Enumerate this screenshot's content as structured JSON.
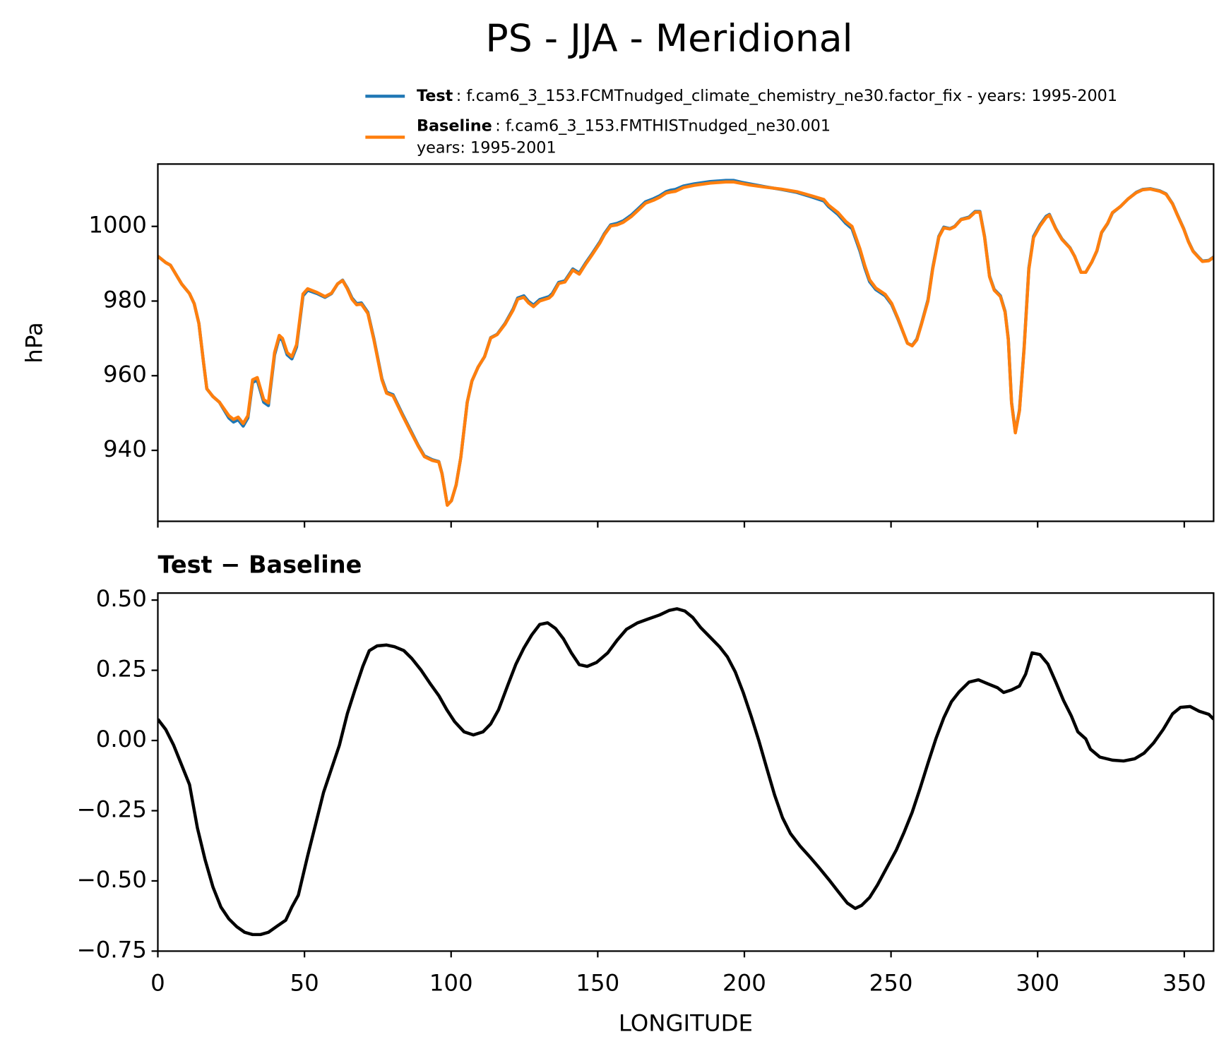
{
  "title": "PS - JJA - Meridional",
  "chart_data": [
    {
      "type": "line",
      "ylabel": "hPa",
      "xlim": [
        0,
        360
      ],
      "ylim": [
        921,
        1016.7
      ],
      "xticks": [
        0,
        50,
        100,
        150,
        200,
        250,
        300,
        350
      ],
      "xticklabels": false,
      "yticks": [
        940,
        960,
        980,
        1000
      ],
      "x": [
        0,
        2.7,
        4.3,
        8.1,
        10.8,
        12.4,
        14,
        15.6,
        16.7,
        18.8,
        21,
        24.2,
        25.8,
        27.4,
        29.1,
        30.7,
        32.3,
        33.9,
        36.1,
        37.7,
        39.8,
        41.4,
        42.5,
        44.1,
        45.7,
        47.3,
        49.5,
        51.1,
        54.3,
        57,
        59.2,
        61.3,
        63,
        64.6,
        66.2,
        67.8,
        69.4,
        71.6,
        73.7,
        76.4,
        78,
        80.2,
        83.4,
        86.1,
        88.8,
        90.9,
        93.6,
        95.8,
        96.9,
        98.7,
        100.1,
        101.7,
        103.3,
        105.5,
        107.1,
        109.2,
        111.4,
        113.5,
        115.7,
        118.4,
        121.1,
        122.7,
        124.8,
        126.4,
        128.1,
        130.2,
        131.8,
        133.4,
        134.5,
        136.7,
        138.8,
        141.5,
        143.7,
        145.8,
        148,
        150.7,
        152.3,
        154.4,
        156.6,
        158.7,
        161.4,
        163.6,
        166.3,
        169,
        171.1,
        173.3,
        174.9,
        176.5,
        179.2,
        182.9,
        188.3,
        193.7,
        196.4,
        199.1,
        201.8,
        207.2,
        212.5,
        217.9,
        223.3,
        227.1,
        228.7,
        231.9,
        234.6,
        236.7,
        239.4,
        241.1,
        242.7,
        244.8,
        248,
        250.2,
        252.4,
        254,
        255.6,
        257.2,
        258.8,
        260.4,
        262.6,
        264.2,
        266.3,
        268,
        270.1,
        271.7,
        273.9,
        276.6,
        278.7,
        280.3,
        281.9,
        283.6,
        285.2,
        287.3,
        288.9,
        290,
        291.1,
        292.4,
        293.8,
        295.4,
        297,
        298.6,
        300.8,
        302.9,
        304,
        306.2,
        308.3,
        311,
        312.6,
        314.8,
        316.4,
        318.5,
        320.2,
        321.8,
        323.9,
        325.5,
        328.2,
        330.9,
        333.6,
        335.8,
        338.4,
        341.7,
        343.8,
        346,
        347.6,
        349.8,
        351.4,
        353,
        354.6,
        356.2,
        358.4,
        360
      ],
      "series": [
        {
          "name": "Test",
          "description": [
            ": f.cam6_3_153.FCMTnudged_climate_chemistry_ne30.factor_fix - years: 1995-2001"
          ],
          "color": "#1f77b4",
          "values": [
            992.0,
            990.3,
            989.6,
            984.6,
            982.0,
            979.3,
            974.0,
            963.4,
            956.5,
            954.4,
            952.9,
            948.7,
            947.6,
            948.2,
            946.5,
            948.7,
            958.2,
            958.8,
            952.9,
            952.0,
            965.6,
            970.2,
            969.4,
            965.6,
            964.5,
            967.7,
            981.4,
            982.9,
            982.0,
            981.0,
            982.0,
            984.6,
            985.6,
            983.5,
            980.8,
            979.3,
            979.5,
            977.0,
            969.8,
            959.2,
            955.6,
            954.9,
            949.7,
            945.5,
            941.3,
            938.5,
            937.5,
            937.0,
            933.8,
            925.4,
            926.5,
            930.7,
            938.1,
            952.9,
            958.6,
            962.3,
            965.1,
            970.2,
            971.1,
            974.0,
            977.8,
            980.8,
            981.4,
            979.9,
            978.9,
            980.4,
            980.8,
            981.2,
            982.0,
            985.0,
            985.4,
            988.6,
            987.5,
            990.1,
            992.6,
            995.8,
            998.1,
            1000.4,
            1000.8,
            1001.5,
            1003.0,
            1004.6,
            1006.6,
            1007.4,
            1008.2,
            1009.3,
            1009.7,
            1009.9,
            1010.8,
            1011.4,
            1012.0,
            1012.3,
            1012.3,
            1011.8,
            1011.4,
            1010.6,
            1009.9,
            1009.1,
            1007.8,
            1006.8,
            1005.3,
            1003.2,
            1000.8,
            999.4,
            993.4,
            988.8,
            985.2,
            983.1,
            981.4,
            979.1,
            975.1,
            971.9,
            968.7,
            968.1,
            969.8,
            974.0,
            980.3,
            988.8,
            997.3,
            999.8,
            999.4,
            1000.0,
            1001.9,
            1002.5,
            1004.0,
            1004.0,
            997.3,
            986.7,
            983.1,
            981.4,
            977.2,
            969.8,
            952.9,
            944.9,
            950.8,
            967.7,
            988.8,
            997.3,
            1000.4,
            1002.7,
            1003.2,
            999.4,
            996.6,
            994.3,
            992.0,
            987.7,
            987.7,
            990.5,
            993.4,
            998.3,
            1000.8,
            1003.6,
            1005.3,
            1007.4,
            1009.1,
            1009.9,
            1010.1,
            1009.5,
            1008.7,
            1006.1,
            1003.2,
            999.4,
            996.0,
            993.4,
            992.0,
            990.7,
            990.9,
            991.8
          ]
        },
        {
          "name": "Baseline",
          "description": [
            ": f.cam6_3_153.FMTHISTnudged_ne30.001",
            "years: 1995-2001"
          ],
          "color": "#ff7f0e",
          "values": [
            992.0,
            990.3,
            989.6,
            984.6,
            982.0,
            979.3,
            974.0,
            963.4,
            956.5,
            954.4,
            952.9,
            949.3,
            948.3,
            948.9,
            947.2,
            949.3,
            958.9,
            959.5,
            953.6,
            952.7,
            966.2,
            970.8,
            970.0,
            966.2,
            965.1,
            968.3,
            981.9,
            983.3,
            982.3,
            981.2,
            982.1,
            984.6,
            985.5,
            983.3,
            980.5,
            979.0,
            979.2,
            976.7,
            969.5,
            958.9,
            955.3,
            954.6,
            949.4,
            945.2,
            941.1,
            938.3,
            937.3,
            936.9,
            933.7,
            925.3,
            926.5,
            930.7,
            938.1,
            952.9,
            958.6,
            962.3,
            965.1,
            970.1,
            971.0,
            973.8,
            977.5,
            980.5,
            981.0,
            979.5,
            978.5,
            980.0,
            980.4,
            980.8,
            981.6,
            984.7,
            985.1,
            988.3,
            987.2,
            989.8,
            992.3,
            995.5,
            997.8,
            1000.1,
            1000.4,
            1001.1,
            1002.6,
            1004.2,
            1006.2,
            1007.0,
            1007.8,
            1008.9,
            1009.2,
            1009.4,
            1010.4,
            1011.0,
            1011.6,
            1011.9,
            1011.9,
            1011.5,
            1011.1,
            1010.5,
            1010.0,
            1009.3,
            1008.1,
            1007.2,
            1005.7,
            1003.7,
            1001.3,
            1000.0,
            994.0,
            989.4,
            985.7,
            983.5,
            981.8,
            979.4,
            975.3,
            972.0,
            968.7,
            968.0,
            969.6,
            973.8,
            980.0,
            988.5,
            997.1,
            999.6,
            999.3,
            999.9,
            1001.8,
            1002.3,
            1003.8,
            1003.8,
            997.1,
            986.5,
            982.9,
            981.2,
            977.0,
            969.6,
            952.7,
            944.7,
            950.6,
            967.4,
            988.5,
            997.0,
            1000.1,
            1002.4,
            1003.0,
            999.3,
            996.5,
            994.2,
            992.0,
            987.7,
            987.7,
            990.5,
            993.5,
            998.4,
            1000.9,
            1003.7,
            1005.3,
            1007.4,
            1009.0,
            1009.8,
            1010.0,
            1009.4,
            1008.6,
            1006.0,
            1003.1,
            999.3,
            995.9,
            993.3,
            991.9,
            990.6,
            990.8,
            991.7
          ]
        }
      ]
    },
    {
      "type": "line",
      "title": "Test − Baseline",
      "xlabel": "LONGITUDE",
      "xlim": [
        0,
        360
      ],
      "ylim": [
        -0.75,
        0.525
      ],
      "xticks": [
        0,
        50,
        100,
        150,
        200,
        250,
        300,
        350
      ],
      "yticks": [
        {
          "value": -0.75,
          "label": "−0.75"
        },
        {
          "value": -0.5,
          "label": "−0.50"
        },
        {
          "value": -0.25,
          "label": "−0.25"
        },
        {
          "value": 0,
          "label": "0.00"
        },
        {
          "value": 0.25,
          "label": "0.25"
        },
        {
          "value": 0.5,
          "label": "0.50"
        }
      ],
      "x": [
        0,
        2.7,
        5.4,
        8.1,
        10.8,
        13.5,
        16.1,
        18.8,
        21.5,
        24.2,
        26.9,
        29.6,
        32.3,
        35,
        37.7,
        40.4,
        43.6,
        45.7,
        47.9,
        51.1,
        53.8,
        56.5,
        59.2,
        61.9,
        64.6,
        67.2,
        69.9,
        72.1,
        74.8,
        78,
        80.7,
        83.9,
        86.6,
        89.8,
        93.1,
        95.8,
        98.5,
        101.2,
        104.4,
        107.6,
        110.9,
        113.5,
        116.2,
        119.4,
        122.1,
        124.8,
        127.5,
        130.2,
        132.9,
        135.6,
        138.3,
        141,
        143.7,
        146.4,
        149.6,
        153.4,
        156.6,
        159.8,
        163.6,
        167.3,
        171.1,
        174.3,
        177,
        179.7,
        182.4,
        185.1,
        188.3,
        191.5,
        194.2,
        196.9,
        199.6,
        202.3,
        205,
        207.7,
        210.3,
        213,
        215.7,
        219,
        222.2,
        225.4,
        228.7,
        231.9,
        235.1,
        237.8,
        240,
        242.7,
        245.4,
        248.6,
        251.8,
        254.5,
        257.2,
        259.9,
        262.6,
        265.3,
        268,
        270.6,
        273.3,
        276.6,
        279.8,
        283,
        286.3,
        288.4,
        291.1,
        293.8,
        295.9,
        298.1,
        300.8,
        303.5,
        306.2,
        308.8,
        311.5,
        313.7,
        316.4,
        318,
        321.2,
        325.5,
        329.3,
        333.1,
        336.3,
        339.6,
        342.8,
        346,
        348.7,
        352,
        355.1,
        358.4,
        360
      ],
      "series": [
        {
          "color": "#000000",
          "values": [
            0.076,
            0.039,
            -0.017,
            -0.087,
            -0.157,
            -0.312,
            -0.424,
            -0.522,
            -0.593,
            -0.635,
            -0.663,
            -0.683,
            -0.691,
            -0.691,
            -0.683,
            -0.663,
            -0.64,
            -0.593,
            -0.551,
            -0.41,
            -0.298,
            -0.185,
            -0.101,
            -0.017,
            0.095,
            0.18,
            0.264,
            0.32,
            0.337,
            0.34,
            0.334,
            0.32,
            0.292,
            0.25,
            0.199,
            0.16,
            0.11,
            0.067,
            0.031,
            0.02,
            0.031,
            0.059,
            0.11,
            0.199,
            0.272,
            0.329,
            0.376,
            0.413,
            0.419,
            0.399,
            0.362,
            0.312,
            0.27,
            0.264,
            0.278,
            0.312,
            0.357,
            0.396,
            0.419,
            0.433,
            0.447,
            0.463,
            0.469,
            0.461,
            0.438,
            0.402,
            0.368,
            0.334,
            0.298,
            0.244,
            0.171,
            0.087,
            -0.003,
            -0.101,
            -0.194,
            -0.275,
            -0.331,
            -0.376,
            -0.413,
            -0.452,
            -0.494,
            -0.537,
            -0.579,
            -0.598,
            -0.587,
            -0.559,
            -0.514,
            -0.452,
            -0.39,
            -0.326,
            -0.256,
            -0.171,
            -0.081,
            0.006,
            0.081,
            0.138,
            0.174,
            0.208,
            0.216,
            0.202,
            0.188,
            0.171,
            0.18,
            0.194,
            0.236,
            0.312,
            0.306,
            0.272,
            0.208,
            0.143,
            0.087,
            0.031,
            0.006,
            -0.031,
            -0.059,
            -0.07,
            -0.073,
            -0.065,
            -0.045,
            -0.008,
            0.039,
            0.095,
            0.118,
            0.121,
            0.104,
            0.093,
            0.076
          ]
        }
      ]
    }
  ]
}
